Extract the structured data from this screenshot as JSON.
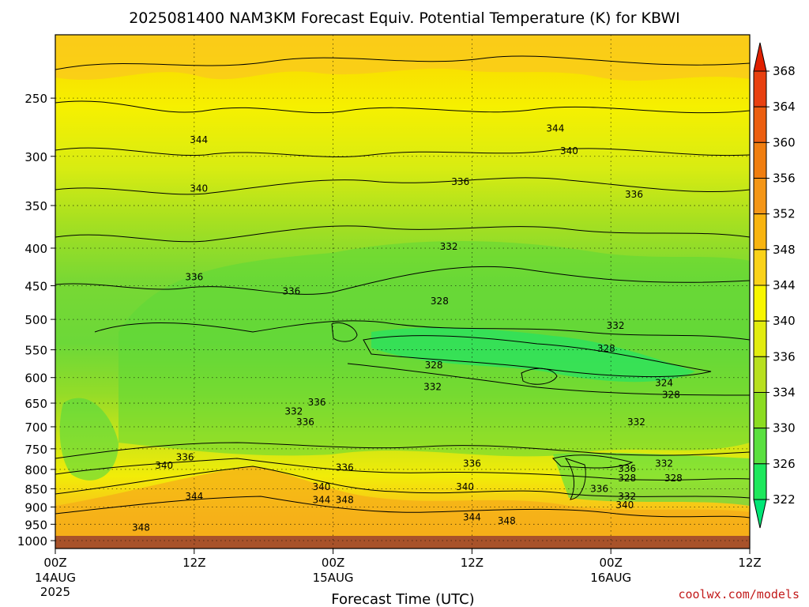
{
  "chart_data": {
    "type": "heatmap",
    "title": "2025081400 NAM3KM Forecast Equiv. Potential Temperature (K) for KBWI",
    "xlabel": "Forecast Time (UTC)",
    "ylabel": "",
    "x_hours_range": [
      0,
      60
    ],
    "y_pressure_range": [
      205,
      1025
    ],
    "y_axis": "pressure, inverted, log-like",
    "y_ticks": [
      250,
      300,
      350,
      400,
      450,
      500,
      550,
      600,
      650,
      700,
      750,
      800,
      850,
      900,
      950,
      1000
    ],
    "x_ticks": [
      {
        "hour": 0,
        "label": "00Z",
        "date": "14AUG",
        "year": "2025"
      },
      {
        "hour": 12,
        "label": "12Z"
      },
      {
        "hour": 24,
        "label": "00Z",
        "date": "15AUG"
      },
      {
        "hour": 36,
        "label": "12Z"
      },
      {
        "hour": 48,
        "label": "00Z",
        "date": "16AUG"
      },
      {
        "hour": 60,
        "label": "12Z"
      }
    ],
    "grid": true,
    "colorbar": {
      "placement": "right",
      "levels": [
        322,
        326,
        330,
        334,
        336,
        340,
        344,
        348,
        352,
        356,
        360,
        364,
        368
      ],
      "colors": [
        "#00e676",
        "#1ee85c",
        "#5ae040",
        "#8cdc22",
        "#b8e020",
        "#e2ec10",
        "#f8f600",
        "#fad21a",
        "#f8b410",
        "#f49618",
        "#f07e10",
        "#ec5e10",
        "#e84010",
        "#e02000"
      ]
    },
    "contour_labels": [
      {
        "hour": 12.4,
        "pressure": 285,
        "value": "344"
      },
      {
        "hour": 43.2,
        "pressure": 275,
        "value": "344"
      },
      {
        "hour": 44.4,
        "pressure": 295,
        "value": "340"
      },
      {
        "hour": 12.4,
        "pressure": 332,
        "value": "340"
      },
      {
        "hour": 35.0,
        "pressure": 325,
        "value": "336"
      },
      {
        "hour": 50.0,
        "pressure": 338,
        "value": "336"
      },
      {
        "hour": 34.0,
        "pressure": 398,
        "value": "332"
      },
      {
        "hour": 12.0,
        "pressure": 438,
        "value": "336"
      },
      {
        "hour": 20.4,
        "pressure": 458,
        "value": "336"
      },
      {
        "hour": 33.2,
        "pressure": 472,
        "value": "328"
      },
      {
        "hour": 48.4,
        "pressure": 510,
        "value": "332"
      },
      {
        "hour": 47.6,
        "pressure": 548,
        "value": "328"
      },
      {
        "hour": 32.7,
        "pressure": 577,
        "value": "328"
      },
      {
        "hour": 32.6,
        "pressure": 618,
        "value": "332"
      },
      {
        "hour": 52.6,
        "pressure": 610,
        "value": "324"
      },
      {
        "hour": 53.2,
        "pressure": 633,
        "value": "328"
      },
      {
        "hour": 22.6,
        "pressure": 648,
        "value": "336"
      },
      {
        "hour": 20.6,
        "pressure": 667,
        "value": "332"
      },
      {
        "hour": 21.6,
        "pressure": 690,
        "value": "336"
      },
      {
        "hour": 50.2,
        "pressure": 690,
        "value": "332"
      },
      {
        "hour": 11.2,
        "pressure": 770,
        "value": "336"
      },
      {
        "hour": 9.4,
        "pressure": 790,
        "value": "340"
      },
      {
        "hour": 36.0,
        "pressure": 785,
        "value": "336"
      },
      {
        "hour": 25.0,
        "pressure": 795,
        "value": "336"
      },
      {
        "hour": 49.4,
        "pressure": 798,
        "value": "336"
      },
      {
        "hour": 52.6,
        "pressure": 785,
        "value": "332"
      },
      {
        "hour": 49.4,
        "pressure": 822,
        "value": "328"
      },
      {
        "hour": 53.4,
        "pressure": 822,
        "value": "328"
      },
      {
        "hour": 23.0,
        "pressure": 845,
        "value": "340"
      },
      {
        "hour": 35.4,
        "pressure": 845,
        "value": "340"
      },
      {
        "hour": 47.0,
        "pressure": 850,
        "value": "336"
      },
      {
        "hour": 49.4,
        "pressure": 870,
        "value": "332"
      },
      {
        "hour": 12.0,
        "pressure": 870,
        "value": "344"
      },
      {
        "hour": 23.0,
        "pressure": 880,
        "value": "344"
      },
      {
        "hour": 25.0,
        "pressure": 880,
        "value": "348"
      },
      {
        "hour": 49.2,
        "pressure": 895,
        "value": "340"
      },
      {
        "hour": 36.0,
        "pressure": 930,
        "value": "344"
      },
      {
        "hour": 39.0,
        "pressure": 940,
        "value": "348"
      },
      {
        "hour": 7.4,
        "pressure": 960,
        "value": "348"
      }
    ]
  },
  "credit": "coolwx.com/models"
}
